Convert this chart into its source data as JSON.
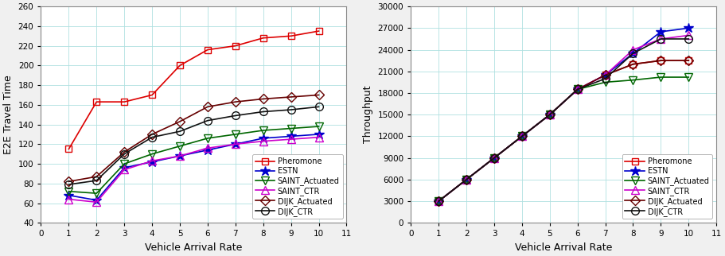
{
  "x": [
    1,
    2,
    3,
    4,
    5,
    6,
    7,
    8,
    9,
    10
  ],
  "left": {
    "xlabel": "Vehicle Arrival Rate",
    "ylabel": "E2E Travel Time",
    "ylim": [
      40,
      260
    ],
    "xlim": [
      0,
      11
    ],
    "yticks": [
      40,
      60,
      80,
      100,
      120,
      140,
      160,
      180,
      200,
      220,
      240,
      260
    ],
    "xticks": [
      0,
      1,
      2,
      3,
      4,
      5,
      6,
      7,
      8,
      9,
      10,
      11
    ],
    "series": {
      "Pheromone": {
        "y": [
          115,
          163,
          163,
          170,
          200,
          216,
          220,
          228,
          230,
          235
        ],
        "color": "#dd0000",
        "marker": "s",
        "markersize": 6,
        "linewidth": 1.2,
        "markerfacecolor": "none",
        "markeredgecolor": "#dd0000"
      },
      "ESTN": {
        "y": [
          68,
          63,
          96,
          102,
          108,
          114,
          120,
          126,
          128,
          130
        ],
        "color": "#0000cc",
        "marker": "*",
        "markersize": 9,
        "linewidth": 1.2,
        "markerfacecolor": "#0000cc",
        "markeredgecolor": "#0000cc"
      },
      "SAINT_Actuated": {
        "y": [
          72,
          70,
          100,
          110,
          118,
          126,
          130,
          134,
          136,
          138
        ],
        "color": "#006600",
        "marker": "v",
        "markersize": 7,
        "linewidth": 1.2,
        "markerfacecolor": "none",
        "markeredgecolor": "#006600"
      },
      "SAINT_CTR": {
        "y": [
          64,
          61,
          94,
          103,
          108,
          116,
          120,
          123,
          125,
          127
        ],
        "color": "#cc00cc",
        "marker": "^",
        "markersize": 7,
        "linewidth": 1.2,
        "markerfacecolor": "none",
        "markeredgecolor": "#cc00cc"
      },
      "DIJK_Actuated": {
        "y": [
          82,
          87,
          112,
          130,
          143,
          158,
          163,
          166,
          168,
          170
        ],
        "color": "#660000",
        "marker": "D",
        "markersize": 6,
        "linewidth": 1.2,
        "markerfacecolor": "none",
        "markeredgecolor": "#660000"
      },
      "DIJK_CTR": {
        "y": [
          79,
          83,
          110,
          127,
          133,
          144,
          149,
          153,
          155,
          158
        ],
        "color": "#111111",
        "marker": "o",
        "markersize": 7,
        "linewidth": 1.2,
        "markerfacecolor": "none",
        "markeredgecolor": "#111111"
      }
    },
    "legend_order": [
      "Pheromone",
      "ESTN",
      "SAINT_Actuated",
      "SAINT_CTR",
      "DIJK_Actuated",
      "DIJK_CTR"
    ]
  },
  "right": {
    "xlabel": "Vehicle Arrival Rate",
    "ylabel": "Throughput",
    "ylim": [
      0,
      30000
    ],
    "xlim": [
      0,
      11
    ],
    "yticks": [
      0,
      3000,
      6000,
      9000,
      12000,
      15000,
      18000,
      21000,
      24000,
      27000,
      30000
    ],
    "xticks": [
      0,
      1,
      2,
      3,
      4,
      5,
      6,
      7,
      8,
      9,
      10,
      11
    ],
    "series": {
      "Pheromone": {
        "y": [
          3000,
          6000,
          9000,
          12000,
          15000,
          18500,
          20500,
          22000,
          22500,
          22500
        ],
        "color": "#dd0000",
        "marker": "s",
        "markersize": 6,
        "linewidth": 1.2,
        "markerfacecolor": "none",
        "markeredgecolor": "#dd0000"
      },
      "ESTN": {
        "y": [
          3000,
          6000,
          9000,
          12000,
          15000,
          18500,
          20500,
          23500,
          26500,
          27000
        ],
        "color": "#0000cc",
        "marker": "*",
        "markersize": 9,
        "linewidth": 1.2,
        "markerfacecolor": "#0000cc",
        "markeredgecolor": "#0000cc"
      },
      "SAINT_Actuated": {
        "y": [
          3000,
          6000,
          9000,
          12000,
          15000,
          18500,
          19500,
          19800,
          20200,
          20200
        ],
        "color": "#006600",
        "marker": "v",
        "markersize": 7,
        "linewidth": 1.2,
        "markerfacecolor": "none",
        "markeredgecolor": "#006600"
      },
      "SAINT_CTR": {
        "y": [
          3000,
          6000,
          9000,
          12000,
          15000,
          18500,
          20500,
          24000,
          25500,
          26000
        ],
        "color": "#cc00cc",
        "marker": "^",
        "markersize": 7,
        "linewidth": 1.2,
        "markerfacecolor": "none",
        "markeredgecolor": "#cc00cc"
      },
      "DIJK_Actuated": {
        "y": [
          3000,
          6000,
          9000,
          12000,
          15000,
          18500,
          20500,
          22000,
          22500,
          22500
        ],
        "color": "#660000",
        "marker": "D",
        "markersize": 6,
        "linewidth": 1.2,
        "markerfacecolor": "none",
        "markeredgecolor": "#660000"
      },
      "DIJK_CTR": {
        "y": [
          3000,
          6000,
          9000,
          12000,
          15000,
          18500,
          20000,
          23500,
          25500,
          25500
        ],
        "color": "#111111",
        "marker": "o",
        "markersize": 7,
        "linewidth": 1.2,
        "markerfacecolor": "none",
        "markeredgecolor": "#111111"
      }
    },
    "legend_order": [
      "Pheromone",
      "ESTN",
      "SAINT_Actuated",
      "SAINT_CTR",
      "DIJK_Actuated",
      "DIJK_CTR"
    ]
  },
  "legend_labels": {
    "Pheromone": "Pheromone",
    "ESTN": "ESTN",
    "SAINT_Actuated": "SAINT_Actuated",
    "SAINT_CTR": "SAINT_CTR",
    "DIJK_Actuated": "DIJK_Actuated",
    "DIJK_CTR": "DIJK_CTR"
  },
  "figure_facecolor": "#f0f0f0",
  "plot_bg_color": "#ffffff",
  "grid_color": "#b0e0e0",
  "spine_color": "#888888"
}
